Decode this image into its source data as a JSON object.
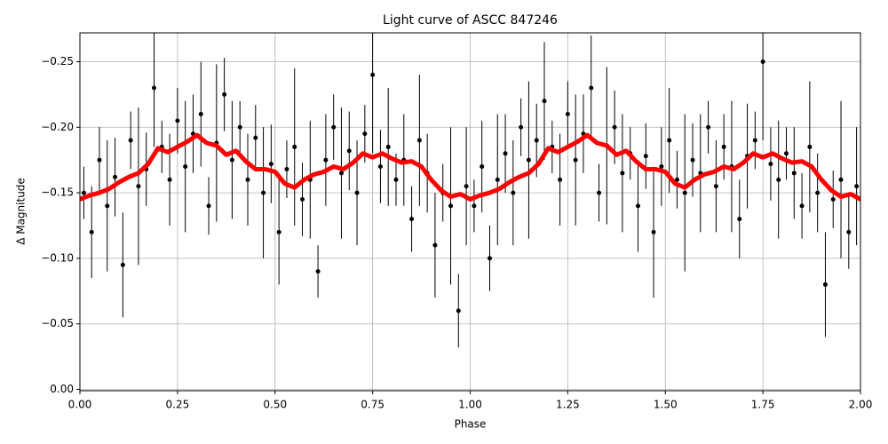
{
  "chart_data": {
    "type": "scatter",
    "title": "Light curve of ASCC 847246",
    "xlabel": "Phase",
    "ylabel": "Δ Magnitude",
    "xlim": [
      0,
      2
    ],
    "ylim": [
      0.001,
      -0.272
    ],
    "xticks": [
      {
        "value": 0,
        "label": "0.00"
      },
      {
        "value": 0.25,
        "label": "0.25"
      },
      {
        "value": 0.5,
        "label": "0.50"
      },
      {
        "value": 0.75,
        "label": "0.75"
      },
      {
        "value": 1,
        "label": "1.00"
      },
      {
        "value": 1.25,
        "label": "1.25"
      },
      {
        "value": 1.5,
        "label": "1.50"
      },
      {
        "value": 1.75,
        "label": "1.75"
      },
      {
        "value": 2,
        "label": "2.00"
      }
    ],
    "yticks": [
      {
        "value": 0,
        "label": "0.00"
      },
      {
        "value": -0.05,
        "label": "−0.05"
      },
      {
        "value": -0.1,
        "label": "−0.10"
      },
      {
        "value": -0.15,
        "label": "−0.15"
      },
      {
        "value": -0.2,
        "label": "−0.20"
      },
      {
        "value": -0.25,
        "label": "−0.25"
      }
    ],
    "grid": true,
    "points": {
      "color": "#000000",
      "x": [
        0.01,
        0.03,
        0.05,
        0.07,
        0.09,
        0.11,
        0.13,
        0.15,
        0.17,
        0.19,
        0.21,
        0.23,
        0.25,
        0.27,
        0.29,
        0.31,
        0.33,
        0.35,
        0.37,
        0.39,
        0.41,
        0.43,
        0.45,
        0.47,
        0.49,
        0.51,
        0.53,
        0.55,
        0.57,
        0.59,
        0.61,
        0.63,
        0.65,
        0.67,
        0.69,
        0.71,
        0.73,
        0.75,
        0.77,
        0.79,
        0.81,
        0.83,
        0.85,
        0.87,
        0.89,
        0.91,
        0.93,
        0.95,
        0.97,
        0.99,
        1.01,
        1.03,
        1.05,
        1.07,
        1.09,
        1.11,
        1.13,
        1.15,
        1.17,
        1.19,
        1.21,
        1.23,
        1.25,
        1.27,
        1.29,
        1.31,
        1.33,
        1.35,
        1.37,
        1.39,
        1.41,
        1.43,
        1.45,
        1.47,
        1.49,
        1.51,
        1.53,
        1.55,
        1.57,
        1.59,
        1.61,
        1.63,
        1.65,
        1.67,
        1.69,
        1.71,
        1.73,
        1.75,
        1.77,
        1.79,
        1.81,
        1.83,
        1.85,
        1.87,
        1.89,
        1.91,
        1.93,
        1.95,
        1.97,
        1.99
      ],
      "values": [
        -0.15,
        -0.12,
        -0.175,
        -0.14,
        -0.162,
        -0.095,
        -0.19,
        -0.155,
        -0.168,
        -0.23,
        -0.185,
        -0.16,
        -0.205,
        -0.17,
        -0.195,
        -0.21,
        -0.14,
        -0.188,
        -0.225,
        -0.175,
        -0.2,
        -0.16,
        -0.192,
        -0.15,
        -0.172,
        -0.12,
        -0.168,
        -0.185,
        -0.145,
        -0.16,
        -0.09,
        -0.175,
        -0.2,
        -0.165,
        -0.182,
        -0.15,
        -0.195,
        -0.24,
        -0.17,
        -0.185,
        -0.16,
        -0.175,
        -0.13,
        -0.19,
        -0.165,
        -0.11,
        -0.15,
        -0.14,
        -0.06,
        -0.155,
        -0.14,
        -0.17,
        -0.1,
        -0.16,
        -0.18,
        -0.15,
        -0.2,
        -0.175,
        -0.19,
        -0.22,
        -0.185,
        -0.16,
        -0.21,
        -0.175,
        -0.195,
        -0.23,
        -0.15,
        -0.186,
        -0.2,
        -0.165,
        -0.18,
        -0.14,
        -0.178,
        -0.12,
        -0.17,
        -0.19,
        -0.16,
        -0.15,
        -0.175,
        -0.165,
        -0.2,
        -0.155,
        -0.185,
        -0.17,
        -0.13,
        -0.178,
        -0.19,
        -0.25,
        -0.172,
        -0.16,
        -0.18,
        -0.165,
        -0.14,
        -0.185,
        -0.15,
        -0.08,
        -0.145,
        -0.16,
        -0.12,
        -0.155
      ],
      "errors": [
        0.02,
        0.035,
        0.025,
        0.05,
        0.03,
        0.04,
        0.022,
        0.06,
        0.028,
        0.045,
        0.02,
        0.035,
        0.025,
        0.05,
        0.03,
        0.04,
        0.022,
        0.06,
        0.028,
        0.045,
        0.02,
        0.035,
        0.025,
        0.05,
        0.03,
        0.04,
        0.022,
        0.06,
        0.028,
        0.045,
        0.02,
        0.035,
        0.025,
        0.05,
        0.03,
        0.04,
        0.022,
        0.06,
        0.028,
        0.045,
        0.02,
        0.035,
        0.025,
        0.05,
        0.03,
        0.04,
        0.022,
        0.06,
        0.028,
        0.045,
        0.02,
        0.035,
        0.025,
        0.05,
        0.03,
        0.04,
        0.022,
        0.06,
        0.028,
        0.045,
        0.02,
        0.035,
        0.025,
        0.05,
        0.03,
        0.04,
        0.022,
        0.06,
        0.028,
        0.045,
        0.02,
        0.035,
        0.025,
        0.05,
        0.03,
        0.04,
        0.022,
        0.06,
        0.028,
        0.045,
        0.02,
        0.035,
        0.025,
        0.05,
        0.03,
        0.04,
        0.022,
        0.06,
        0.028,
        0.045,
        0.02,
        0.035,
        0.025,
        0.05,
        0.03,
        0.04,
        0.022,
        0.06,
        0.028,
        0.045
      ]
    },
    "curve": {
      "color": "#ff0000",
      "x": [
        0,
        0.025,
        0.05,
        0.075,
        0.1,
        0.125,
        0.15,
        0.175,
        0.2,
        0.225,
        0.25,
        0.275,
        0.3,
        0.325,
        0.35,
        0.375,
        0.4,
        0.425,
        0.45,
        0.475,
        0.5,
        0.525,
        0.55,
        0.575,
        0.6,
        0.625,
        0.65,
        0.675,
        0.7,
        0.725,
        0.75,
        0.775,
        0.8,
        0.825,
        0.85,
        0.875,
        0.9,
        0.925,
        0.95,
        0.975,
        1,
        1.025,
        1.05,
        1.075,
        1.1,
        1.125,
        1.15,
        1.175,
        1.2,
        1.225,
        1.25,
        1.275,
        1.3,
        1.325,
        1.35,
        1.375,
        1.4,
        1.425,
        1.45,
        1.475,
        1.5,
        1.525,
        1.55,
        1.575,
        1.6,
        1.625,
        1.65,
        1.675,
        1.7,
        1.725,
        1.75,
        1.775,
        1.8,
        1.825,
        1.85,
        1.875,
        1.9,
        1.925,
        1.95,
        1.975,
        2
      ],
      "values": [
        -0.145,
        -0.148,
        -0.15,
        -0.153,
        -0.158,
        -0.162,
        -0.165,
        -0.172,
        -0.184,
        -0.181,
        -0.185,
        -0.189,
        -0.194,
        -0.188,
        -0.186,
        -0.179,
        -0.182,
        -0.174,
        -0.168,
        -0.168,
        -0.166,
        -0.157,
        -0.154,
        -0.16,
        -0.164,
        -0.166,
        -0.17,
        -0.168,
        -0.173,
        -0.18,
        -0.177,
        -0.18,
        -0.176,
        -0.173,
        -0.174,
        -0.17,
        -0.16,
        -0.152,
        -0.147,
        -0.149,
        -0.145,
        -0.148,
        -0.15,
        -0.153,
        -0.158,
        -0.162,
        -0.165,
        -0.172,
        -0.184,
        -0.181,
        -0.185,
        -0.189,
        -0.194,
        -0.188,
        -0.186,
        -0.179,
        -0.182,
        -0.174,
        -0.168,
        -0.168,
        -0.166,
        -0.157,
        -0.154,
        -0.16,
        -0.164,
        -0.166,
        -0.17,
        -0.168,
        -0.173,
        -0.18,
        -0.177,
        -0.18,
        -0.176,
        -0.173,
        -0.174,
        -0.17,
        -0.16,
        -0.152,
        -0.147,
        -0.149,
        -0.145
      ]
    }
  }
}
